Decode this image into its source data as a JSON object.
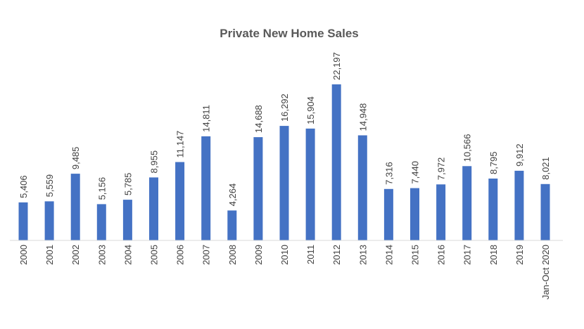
{
  "chart_data": {
    "type": "bar",
    "title": "Private New Home Sales",
    "categories": [
      "2000",
      "2001",
      "2002",
      "2003",
      "2004",
      "2005",
      "2006",
      "2007",
      "2008",
      "2009",
      "2010",
      "2011",
      "2012",
      "2013",
      "2014",
      "2015",
      "2016",
      "2017",
      "2018",
      "2019",
      "Jan-Oct 2020"
    ],
    "values": [
      5406,
      5559,
      9485,
      5156,
      5785,
      8955,
      11147,
      14811,
      4264,
      14688,
      16292,
      15904,
      22197,
      14948,
      7316,
      7440,
      7972,
      10566,
      8795,
      9912,
      8021
    ],
    "data_labels": [
      "5,406",
      "5,559",
      "9,485",
      "5,156",
      "5,785",
      "8,955",
      "11,147",
      "14,811",
      "4,264",
      "14,688",
      "16,292",
      "15,904",
      "22,197",
      "14,948",
      "7,316",
      "7,440",
      "7,972",
      "10,566",
      "8,795",
      "9,912",
      "8,021"
    ],
    "xlabel": "",
    "ylabel": "",
    "ylim": [
      0,
      22197
    ],
    "grid": false,
    "legend": "none",
    "bar_color": "#4472C4"
  }
}
